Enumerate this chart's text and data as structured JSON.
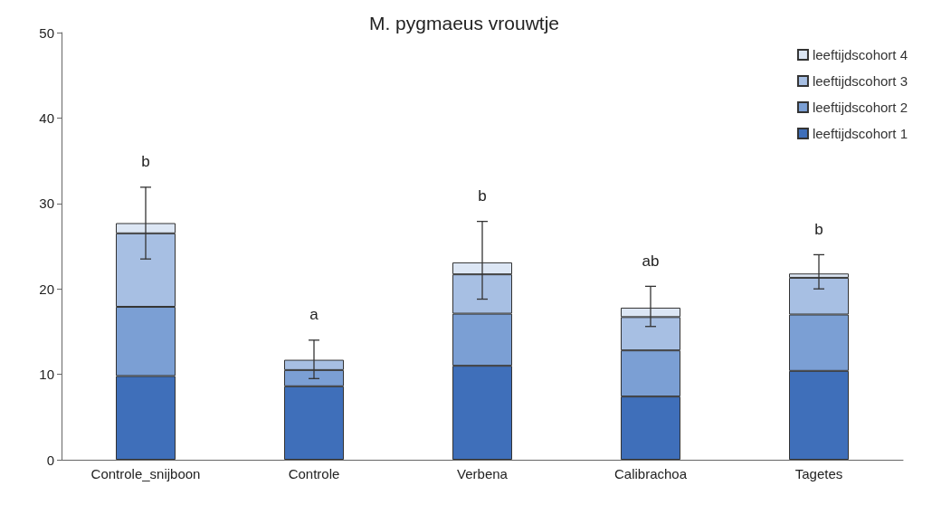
{
  "chart_data": {
    "type": "bar",
    "title": "M. pygmaeus vrouwtje",
    "stacked": true,
    "categories": [
      "Controle_snijboon",
      "Controle",
      "Verbena",
      "Calibrachoa",
      "Tagetes"
    ],
    "series": [
      {
        "name": "leeftijdscohort 1",
        "color": "#3f6fba",
        "values": [
          9.8,
          8.6,
          11.0,
          7.4,
          10.4
        ]
      },
      {
        "name": "leeftijdscohort 2",
        "color": "#7b9fd4",
        "values": [
          8.1,
          1.9,
          6.1,
          5.4,
          6.6
        ]
      },
      {
        "name": "leeftijdscohort 3",
        "color": "#a7bfe3",
        "values": [
          8.6,
          1.2,
          4.6,
          3.9,
          4.3
        ]
      },
      {
        "name": "leeftijdscohort 4",
        "color": "#dce6f4",
        "values": [
          1.2,
          0,
          1.4,
          1.1,
          0.5
        ],
        "errors": [
          [
            23.5,
            31.9
          ],
          [
            9.5,
            14.0
          ],
          [
            18.8,
            27.9
          ],
          [
            15.6,
            20.3
          ],
          [
            20.0,
            24.0
          ]
        ]
      }
    ],
    "annotations": [
      "b",
      "a",
      "b",
      "ab",
      "b"
    ],
    "ylim": [
      0,
      50
    ],
    "yticks": [
      0,
      10,
      20,
      30,
      40,
      50
    ],
    "grid": false,
    "legend": "top right"
  }
}
